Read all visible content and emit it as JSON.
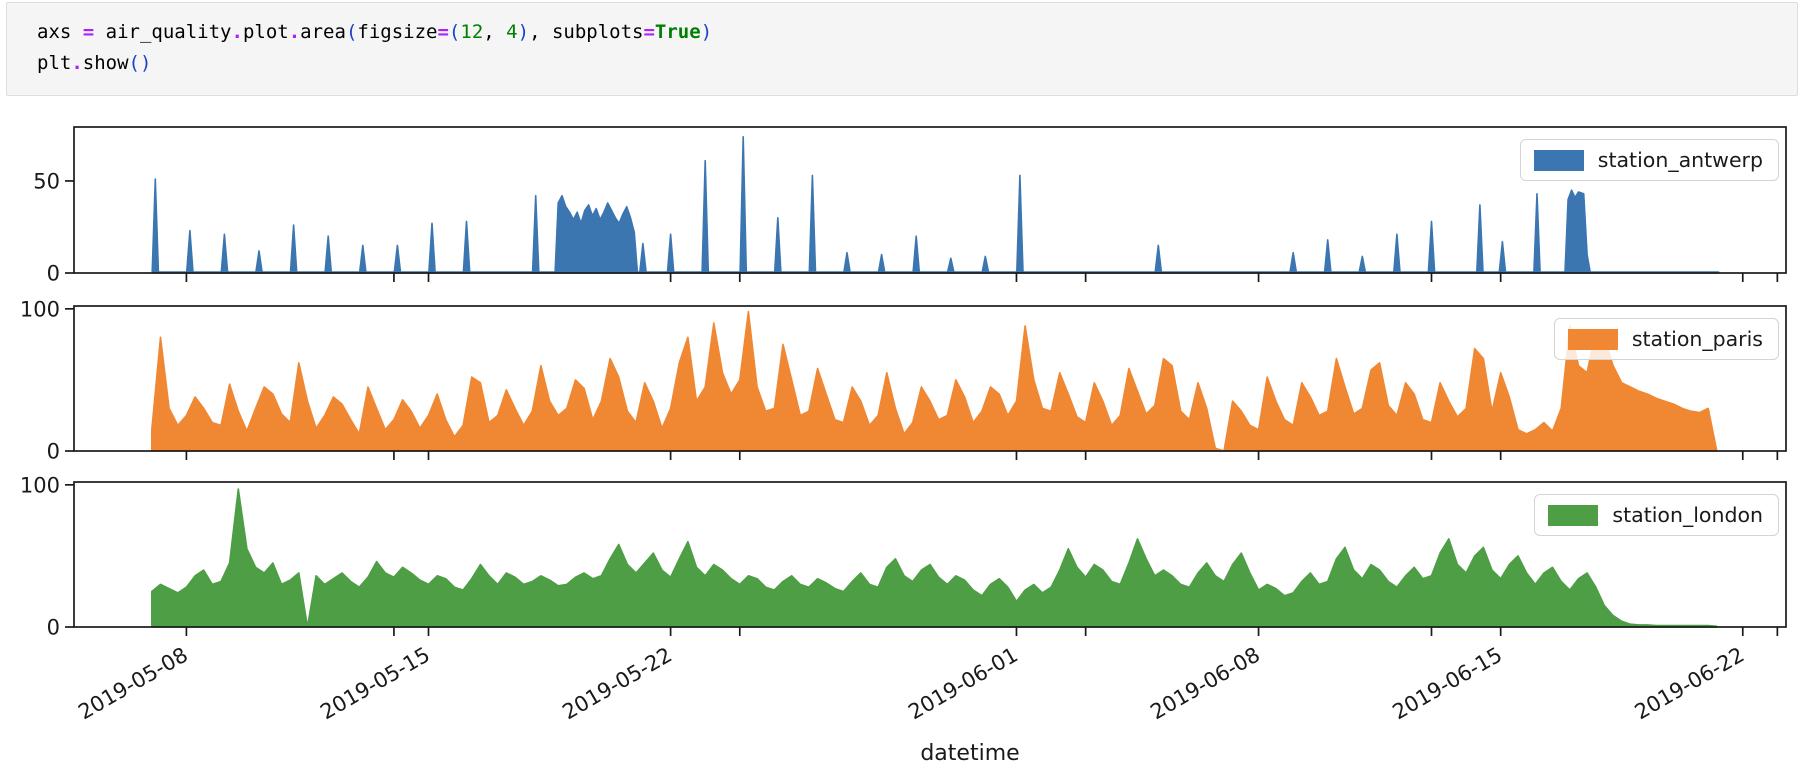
{
  "code_cell": {
    "lines": [
      [
        [
          "axs ",
          "p"
        ],
        [
          "=",
          "o"
        ],
        [
          " air_quality",
          "p"
        ],
        [
          ".",
          "o"
        ],
        [
          "plot",
          "p"
        ],
        [
          ".",
          "o"
        ],
        [
          "area",
          "p"
        ],
        [
          "(",
          "b"
        ],
        [
          "figsize",
          "p"
        ],
        [
          "=",
          "o"
        ],
        [
          "(",
          "b"
        ],
        [
          "12",
          "n"
        ],
        [
          ", ",
          "p"
        ],
        [
          "4",
          "n"
        ],
        [
          ")",
          "b"
        ],
        [
          ", ",
          "p"
        ],
        [
          "subplots",
          "p"
        ],
        [
          "=",
          "o"
        ],
        [
          "True",
          "k"
        ],
        [
          ")",
          "b"
        ]
      ],
      [
        [
          "plt",
          "p"
        ],
        [
          ".",
          "o"
        ],
        [
          "show",
          "p"
        ],
        [
          "(",
          "b"
        ],
        [
          ")",
          "b"
        ]
      ]
    ]
  },
  "chart_data": {
    "type": "area",
    "xlabel": "datetime",
    "x_origin": "2019-05-07",
    "x_domain_days": [
      -2.25,
      47.25
    ],
    "x_ticks": [
      {
        "t": 1,
        "label": "2019-05-08"
      },
      {
        "t": 8,
        "label": "2019-05-15"
      },
      {
        "t": 15,
        "label": "2019-05-22"
      },
      {
        "t": 25,
        "label": "2019-06-01"
      },
      {
        "t": 32,
        "label": "2019-06-08"
      },
      {
        "t": 39,
        "label": "2019-06-15"
      },
      {
        "t": 46,
        "label": "2019-06-22"
      }
    ],
    "x_minor_ticks": [
      7,
      17,
      27,
      37,
      47
    ],
    "tick_label_rotation_deg": -30,
    "axis_color": "#1a1a1a",
    "subplots": [
      {
        "name": "station_antwerp",
        "color": "#3c76b1",
        "ylim": [
          0,
          79.3
        ],
        "yticks": [
          {
            "v": 0,
            "label": "0"
          },
          {
            "v": 50,
            "label": "50"
          }
        ],
        "series_mode": "spikes",
        "baseline": 0.5,
        "t_start": 0.05,
        "t_end": 45.3,
        "segments": [
          [
            0.1,
            51
          ],
          [
            1.1,
            23
          ],
          [
            2.1,
            21
          ],
          [
            3.1,
            12
          ],
          [
            4.1,
            26
          ],
          [
            5.1,
            20
          ],
          [
            6.1,
            15
          ],
          [
            7.1,
            15
          ],
          [
            8.1,
            27
          ],
          [
            9.1,
            28
          ],
          [
            11.1,
            42
          ],
          {
            "run": [
              [
                11.75,
                38
              ],
              [
                11.86,
                42
              ],
              [
                11.97,
                36
              ],
              [
                12.08,
                33
              ],
              [
                12.19,
                29
              ],
              [
                12.3,
                33
              ],
              [
                12.41,
                27
              ],
              [
                12.52,
                34
              ],
              [
                12.63,
                37
              ],
              [
                12.74,
                31
              ],
              [
                12.85,
                35
              ],
              [
                12.96,
                29
              ],
              [
                13.07,
                33
              ],
              [
                13.18,
                38
              ],
              [
                13.29,
                34
              ],
              [
                13.4,
                30
              ],
              [
                13.51,
                27
              ],
              [
                13.62,
                32
              ],
              [
                13.73,
                36
              ],
              [
                13.84,
                30
              ],
              [
                13.95,
                22
              ]
            ]
          },
          [
            14.2,
            16
          ],
          [
            15.0,
            21
          ],
          [
            16.0,
            61
          ],
          [
            17.1,
            74
          ],
          [
            18.1,
            30
          ],
          [
            19.1,
            53
          ],
          [
            20.1,
            11
          ],
          [
            21.1,
            10
          ],
          [
            22.1,
            20
          ],
          [
            23.1,
            8
          ],
          [
            24.1,
            9
          ],
          [
            25.1,
            53
          ],
          [
            29.1,
            15
          ],
          [
            33.0,
            11
          ],
          [
            34.0,
            18
          ],
          [
            35.0,
            9
          ],
          [
            36.0,
            21
          ],
          [
            37.0,
            28
          ],
          [
            38.4,
            37
          ],
          [
            39.05,
            17
          ],
          [
            40.05,
            43
          ],
          {
            "run": [
              [
                40.95,
                40
              ],
              [
                41.05,
                45
              ],
              [
                41.15,
                41
              ],
              [
                41.25,
                44
              ],
              [
                41.4,
                43
              ],
              [
                41.5,
                10
              ]
            ]
          }
        ]
      },
      {
        "name": "station_paris",
        "color": "#f08733",
        "ylim": [
          0,
          102
        ],
        "yticks": [
          {
            "v": 0,
            "label": "0"
          },
          {
            "v": 100,
            "label": "100"
          }
        ],
        "series_mode": "samples",
        "t0": 0,
        "dt": 0.25,
        "values": [
          15,
          80,
          30,
          18,
          25,
          38,
          30,
          20,
          18,
          47,
          28,
          14,
          30,
          45,
          40,
          26,
          20,
          62,
          35,
          16,
          25,
          38,
          33,
          22,
          12,
          45,
          30,
          15,
          22,
          36,
          28,
          16,
          25,
          40,
          22,
          10,
          18,
          52,
          48,
          20,
          25,
          43,
          30,
          18,
          28,
          60,
          35,
          25,
          30,
          50,
          44,
          22,
          35,
          65,
          52,
          28,
          20,
          48,
          35,
          16,
          30,
          62,
          80,
          35,
          45,
          90,
          55,
          40,
          50,
          98,
          45,
          28,
          30,
          75,
          50,
          25,
          28,
          58,
          40,
          22,
          20,
          45,
          35,
          18,
          25,
          55,
          30,
          12,
          20,
          45,
          35,
          22,
          25,
          50,
          38,
          20,
          28,
          45,
          40,
          25,
          35,
          88,
          50,
          30,
          28,
          55,
          40,
          24,
          20,
          48,
          35,
          18,
          25,
          58,
          42,
          26,
          32,
          65,
          60,
          28,
          22,
          48,
          30,
          2,
          0,
          35,
          28,
          18,
          15,
          52,
          35,
          22,
          18,
          48,
          38,
          25,
          28,
          65,
          45,
          26,
          30,
          57,
          62,
          32,
          25,
          48,
          40,
          22,
          20,
          48,
          35,
          24,
          30,
          72,
          65,
          28,
          55,
          38,
          15,
          12,
          15,
          20,
          14,
          30,
          88,
          60,
          55,
          85,
          80,
          60,
          48,
          45,
          42,
          40,
          37,
          35,
          33,
          30,
          28,
          27,
          30,
          0
        ]
      },
      {
        "name": "station_london",
        "color": "#4d9e45",
        "ylim": [
          0,
          102
        ],
        "yticks": [
          {
            "v": 0,
            "label": "0"
          },
          {
            "v": 100,
            "label": "100"
          }
        ],
        "series_mode": "samples",
        "t0": 0,
        "dt": 0.25,
        "values": [
          25,
          30,
          27,
          24,
          28,
          36,
          40,
          30,
          32,
          45,
          97,
          55,
          42,
          38,
          45,
          30,
          33,
          38,
          0,
          36,
          30,
          34,
          38,
          32,
          28,
          35,
          46,
          38,
          35,
          42,
          38,
          33,
          30,
          36,
          34,
          28,
          26,
          34,
          44,
          36,
          30,
          38,
          35,
          30,
          32,
          36,
          33,
          29,
          30,
          35,
          38,
          34,
          36,
          48,
          58,
          44,
          38,
          45,
          52,
          40,
          35,
          48,
          60,
          42,
          36,
          44,
          40,
          34,
          30,
          36,
          34,
          28,
          26,
          32,
          36,
          30,
          28,
          34,
          31,
          27,
          25,
          32,
          38,
          30,
          28,
          42,
          48,
          36,
          32,
          40,
          44,
          35,
          30,
          36,
          33,
          26,
          22,
          30,
          34,
          28,
          18,
          26,
          30,
          24,
          28,
          40,
          55,
          42,
          35,
          44,
          40,
          32,
          30,
          45,
          62,
          48,
          36,
          40,
          36,
          30,
          28,
          38,
          45,
          36,
          32,
          44,
          52,
          38,
          26,
          30,
          27,
          22,
          24,
          32,
          38,
          30,
          32,
          48,
          56,
          40,
          34,
          44,
          40,
          32,
          28,
          36,
          42,
          34,
          36,
          52,
          62,
          44,
          38,
          50,
          56,
          40,
          34,
          44,
          50,
          38,
          30,
          38,
          42,
          32,
          26,
          34,
          38,
          28,
          15,
          8,
          4,
          2,
          1.5,
          1.5,
          1,
          1,
          1,
          1,
          1,
          1,
          1,
          0.5
        ]
      }
    ]
  }
}
